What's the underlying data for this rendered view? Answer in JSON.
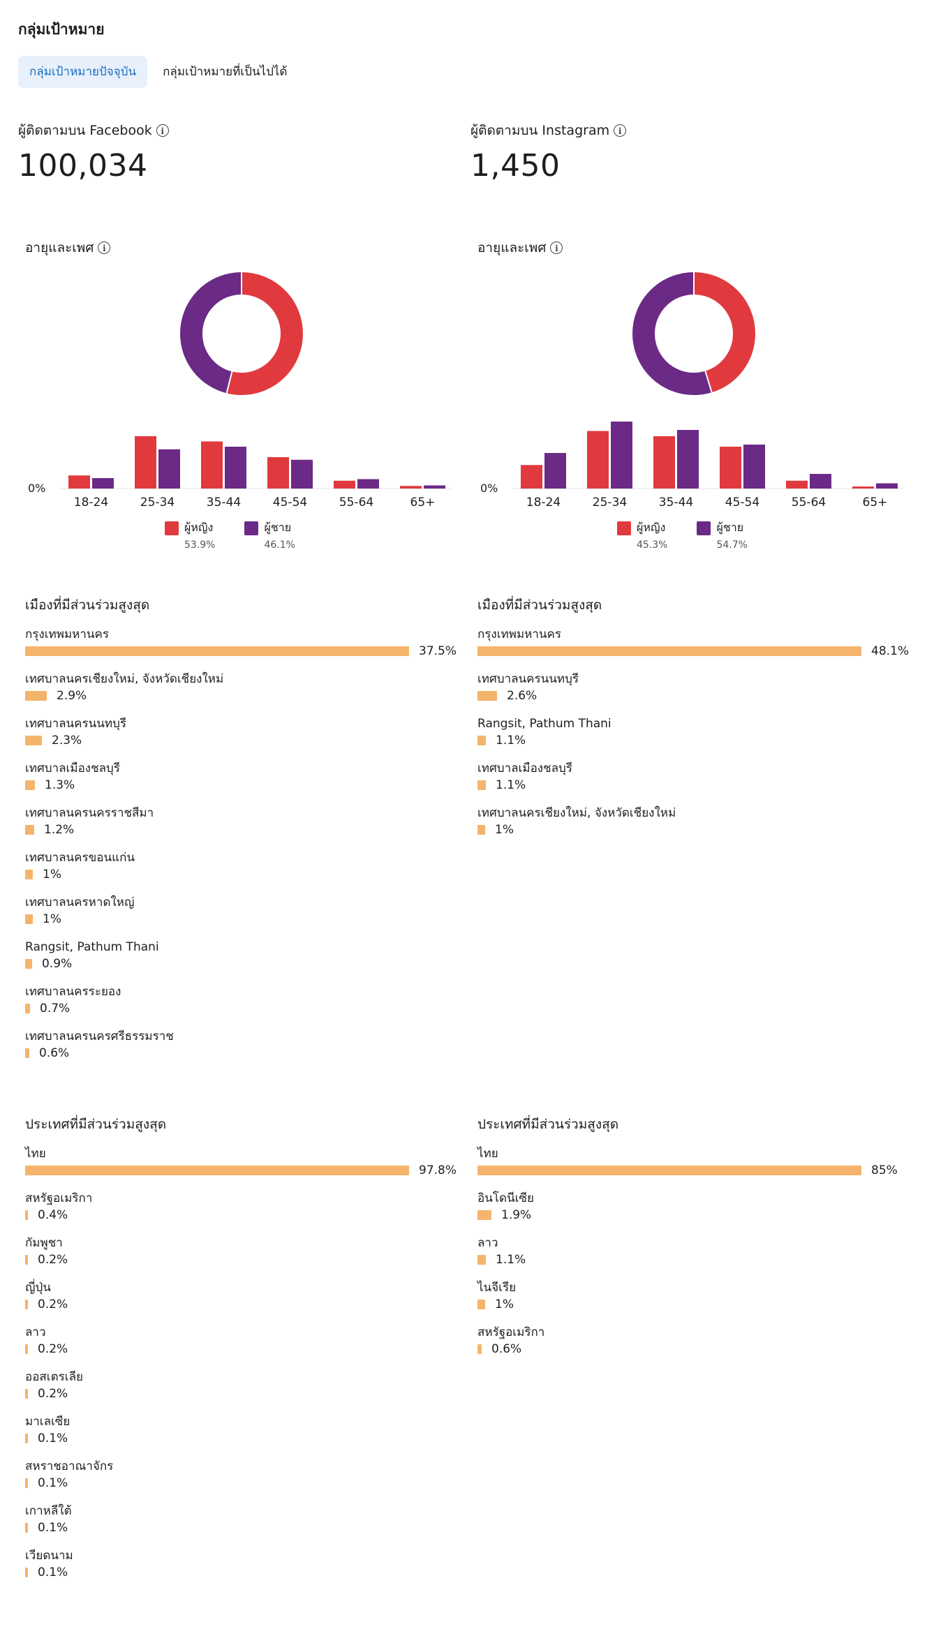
{
  "page": {
    "title": "กลุ่มเป้าหมาย"
  },
  "tabs": [
    {
      "label": "กลุ่มเป้าหมายปัจจุบัน",
      "active": true
    },
    {
      "label": "กลุ่มเป้าหมายที่เป็นไปได้",
      "active": false
    }
  ],
  "colors": {
    "women": "#e03a3e",
    "men": "#6b2a86",
    "bar": "#f5b46c",
    "tab_active_bg": "#e7f0fb"
  },
  "facebook": {
    "followers_label": "ผู้ติดตามบน Facebook",
    "followers_value": "100,034",
    "age_gender_title": "อายุและเพศ",
    "chart_data": {
      "type": "bar",
      "categories": [
        "18-24",
        "25-34",
        "35-44",
        "45-54",
        "55-64",
        "65+"
      ],
      "series": [
        {
          "name": "ผู้หญิง",
          "values": [
            2.5,
            10,
            9,
            6,
            1.5,
            0.5
          ]
        },
        {
          "name": "ผู้ชาย",
          "values": [
            2,
            7.5,
            8,
            5.5,
            1.8,
            0.6
          ]
        }
      ],
      "ylabel_zero": "0%",
      "donut": {
        "women_share": 53.9,
        "men_share": 46.1
      }
    },
    "legend": [
      {
        "label": "ผู้หญิง",
        "pct": "53.9%"
      },
      {
        "label": "ผู้ชาย",
        "pct": "46.1%"
      }
    ],
    "cities_title": "เมืองที่มีส่วนร่วมสูงสุด",
    "cities": [
      {
        "name": "กรุงเทพมหานคร",
        "pct": "37.5%",
        "value": 37.5
      },
      {
        "name": "เทศบาลนครเชียงใหม่, จังหวัดเชียงใหม่",
        "pct": "2.9%",
        "value": 2.9
      },
      {
        "name": "เทศบาลนครนนทบุรี",
        "pct": "2.3%",
        "value": 2.3
      },
      {
        "name": "เทศบาลเมืองชลบุรี",
        "pct": "1.3%",
        "value": 1.3
      },
      {
        "name": "เทศบาลนครนครราชสีมา",
        "pct": "1.2%",
        "value": 1.2
      },
      {
        "name": "เทศบาลนครขอนแก่น",
        "pct": "1%",
        "value": 1
      },
      {
        "name": "เทศบาลนครหาดใหญ่",
        "pct": "1%",
        "value": 1
      },
      {
        "name": "Rangsit, Pathum Thani",
        "pct": "0.9%",
        "value": 0.9
      },
      {
        "name": "เทศบาลนครระยอง",
        "pct": "0.7%",
        "value": 0.7
      },
      {
        "name": "เทศบาลนครนครศรีธรรมราช",
        "pct": "0.6%",
        "value": 0.6
      }
    ],
    "countries_title": "ประเทศที่มีส่วนร่วมสูงสุด",
    "countries": [
      {
        "name": "ไทย",
        "pct": "97.8%",
        "value": 97.8
      },
      {
        "name": "สหรัฐอเมริกา",
        "pct": "0.4%",
        "value": 0.4
      },
      {
        "name": "กัมพูชา",
        "pct": "0.2%",
        "value": 0.2
      },
      {
        "name": "ญี่ปุ่น",
        "pct": "0.2%",
        "value": 0.2
      },
      {
        "name": "ลาว",
        "pct": "0.2%",
        "value": 0.2
      },
      {
        "name": "ออสเตรเลีย",
        "pct": "0.2%",
        "value": 0.2
      },
      {
        "name": "มาเลเซีย",
        "pct": "0.1%",
        "value": 0.1
      },
      {
        "name": "สหราชอาณาจักร",
        "pct": "0.1%",
        "value": 0.1
      },
      {
        "name": "เกาหลีใต้",
        "pct": "0.1%",
        "value": 0.1
      },
      {
        "name": "เวียดนาม",
        "pct": "0.1%",
        "value": 0.1
      }
    ]
  },
  "instagram": {
    "followers_label": "ผู้ติดตามบน Instagram",
    "followers_value": "1,450",
    "age_gender_title": "อายุและเพศ",
    "chart_data": {
      "type": "bar",
      "categories": [
        "18-24",
        "25-34",
        "35-44",
        "45-54",
        "55-64",
        "65+"
      ],
      "series": [
        {
          "name": "ผู้หญิง",
          "values": [
            4.5,
            11,
            10,
            8,
            1.5,
            0.4
          ]
        },
        {
          "name": "ผู้ชาย",
          "values": [
            6.8,
            12.8,
            11.2,
            8.4,
            2.8,
            1
          ]
        }
      ],
      "ylabel_zero": "0%",
      "donut": {
        "women_share": 45.3,
        "men_share": 54.7
      }
    },
    "legend": [
      {
        "label": "ผู้หญิง",
        "pct": "45.3%"
      },
      {
        "label": "ผู้ชาย",
        "pct": "54.7%"
      }
    ],
    "cities_title": "เมืองที่มีส่วนร่วมสูงสุด",
    "cities": [
      {
        "name": "กรุงเทพมหานคร",
        "pct": "48.1%",
        "value": 48.1
      },
      {
        "name": "เทศบาลนครนนทบุรี",
        "pct": "2.6%",
        "value": 2.6
      },
      {
        "name": "Rangsit, Pathum Thani",
        "pct": "1.1%",
        "value": 1.1
      },
      {
        "name": "เทศบาลเมืองชลบุรี",
        "pct": "1.1%",
        "value": 1.1
      },
      {
        "name": "เทศบาลนครเชียงใหม่, จังหวัดเชียงใหม่",
        "pct": "1%",
        "value": 1
      }
    ],
    "countries_title": "ประเทศที่มีส่วนร่วมสูงสุด",
    "countries": [
      {
        "name": "ไทย",
        "pct": "85%",
        "value": 85
      },
      {
        "name": "อินโดนีเซีย",
        "pct": "1.9%",
        "value": 1.9
      },
      {
        "name": "ลาว",
        "pct": "1.1%",
        "value": 1.1
      },
      {
        "name": "ไนจีเรีย",
        "pct": "1%",
        "value": 1
      },
      {
        "name": "สหรัฐอเมริกา",
        "pct": "0.6%",
        "value": 0.6
      }
    ]
  }
}
